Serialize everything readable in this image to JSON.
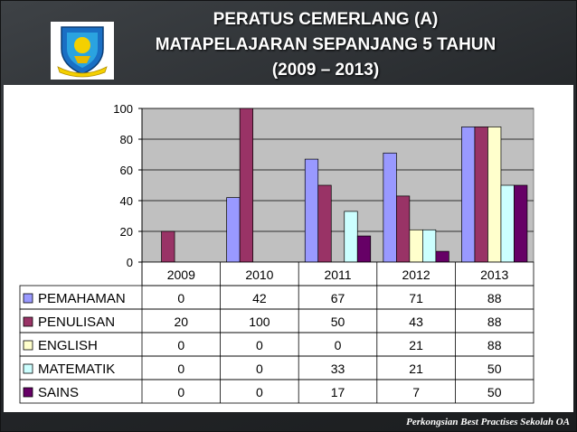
{
  "header": {
    "title_line1": "PERATUS CEMERLANG (A)",
    "title_line2": "MATAPELAJARAN SEPANJANG 5 TAHUN",
    "title_line3": "(2009 – 2013)",
    "logo_icon": "school-crest-icon"
  },
  "footer": {
    "text": "Perkongsian Best Practises Sekolah OA"
  },
  "chart_data": {
    "type": "bar",
    "title": "",
    "xlabel": "",
    "ylabel": "",
    "ylim": [
      0,
      100
    ],
    "yticks": [
      0,
      20,
      40,
      60,
      80,
      100
    ],
    "grid": true,
    "legend": "data-table-left",
    "plot_background": "#c0c0c0",
    "categories": [
      "2009",
      "2010",
      "2011",
      "2012",
      "2013"
    ],
    "series": [
      {
        "name": "PEMAHAMAN",
        "color": "#9999ff",
        "values": [
          0,
          42,
          67,
          71,
          88
        ]
      },
      {
        "name": "PENULISAN",
        "color": "#993366",
        "values": [
          20,
          100,
          50,
          43,
          88
        ]
      },
      {
        "name": "ENGLISH",
        "color": "#ffffcc",
        "values": [
          0,
          0,
          0,
          21,
          88
        ]
      },
      {
        "name": "MATEMATIK",
        "color": "#ccffff",
        "values": [
          0,
          0,
          33,
          21,
          50
        ]
      },
      {
        "name": "SAINS",
        "color": "#660066",
        "values": [
          0,
          0,
          17,
          7,
          50
        ]
      }
    ]
  }
}
